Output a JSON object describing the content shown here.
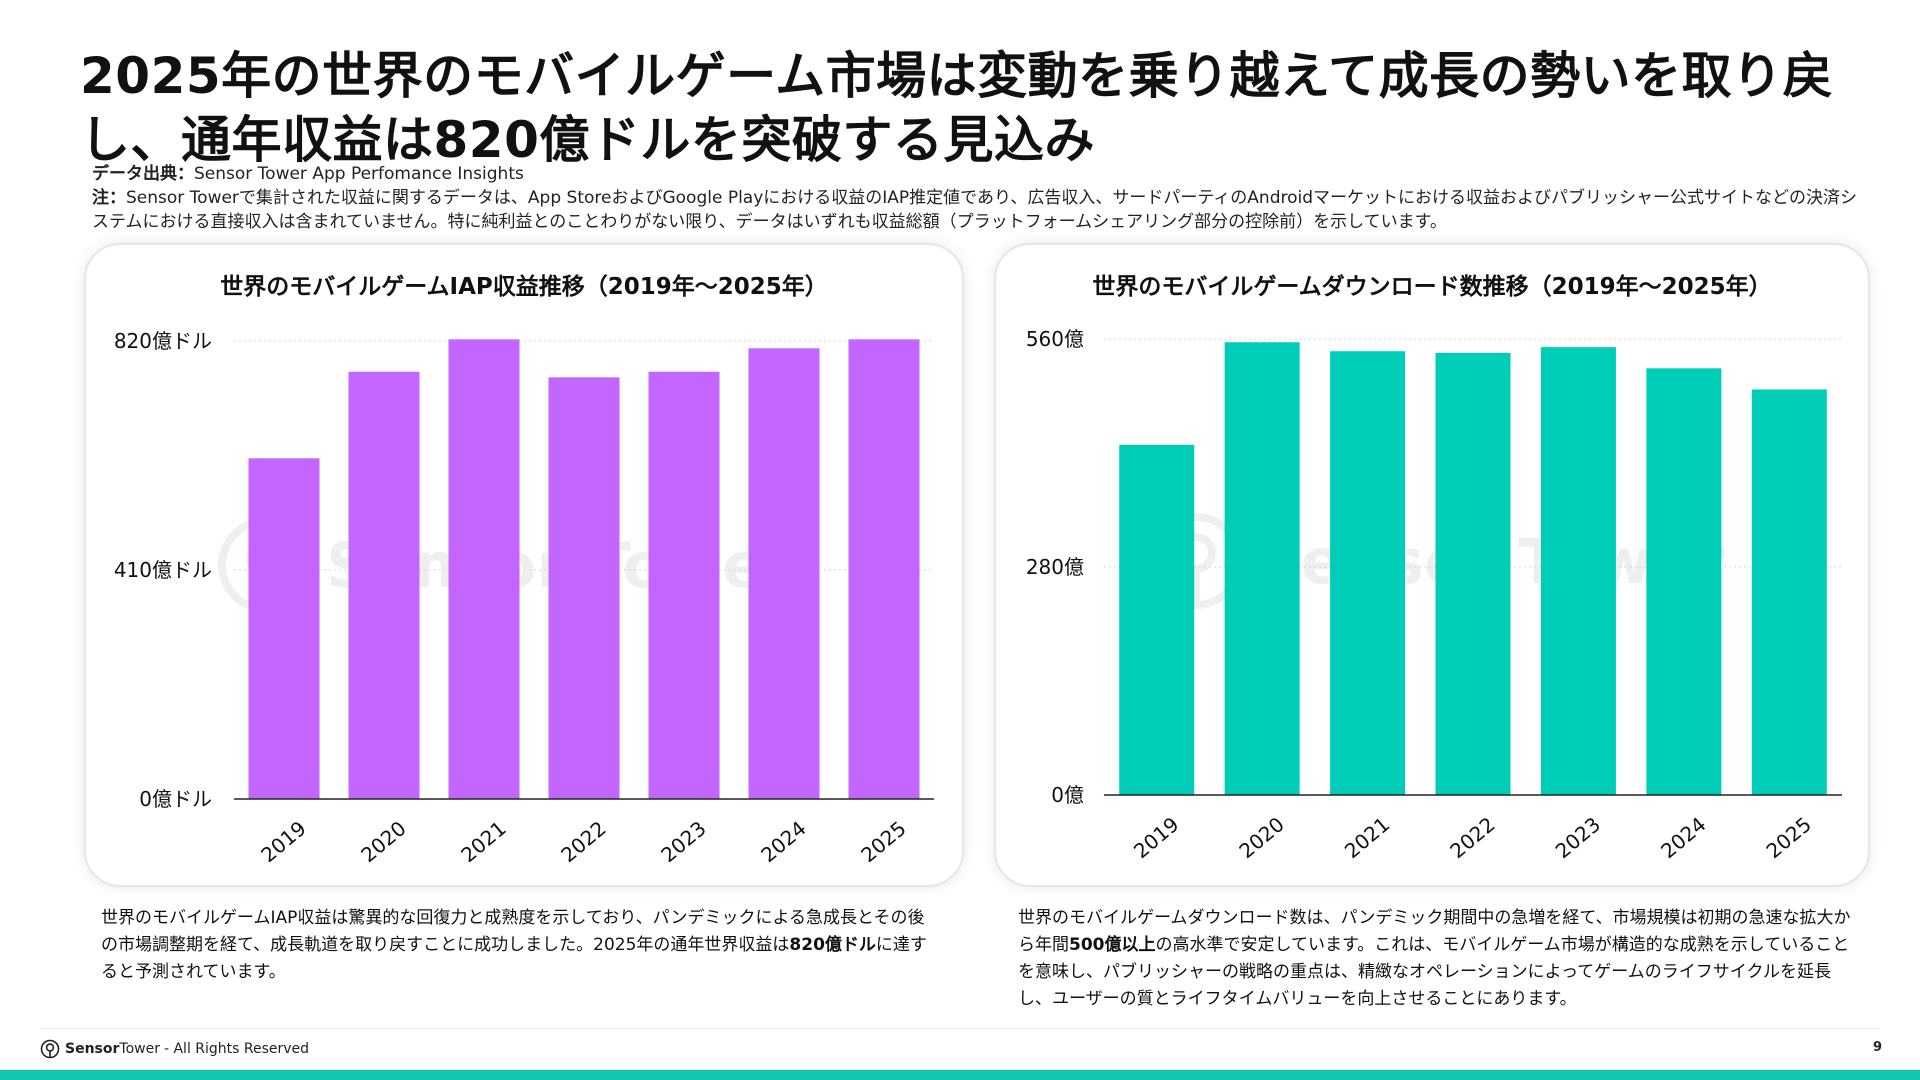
{
  "title": "2025年の世界のモバイルゲーム市場は変動を乗り越えて成長の勢いを取り戻し、通年収益は820億ドルを突破する見込み",
  "source": {
    "label": "データ出典：",
    "text": "Sensor Tower App Perfomance Insights"
  },
  "note": {
    "label": "注：",
    "text": "Sensor Towerで集計された収益に関するデータは、App StoreおよびGoogle Playにおける収益のIAP推定値であり、広告収入、サードパーティのAndroidマーケットにおける収益およびパブリッシャー公式サイトなどの決済システムにおける直接収入は含まれていません。特に純利益とのことわりがない限り、データはいずれも収益総額（プラットフォームシェアリング部分の控除前）を示しています。"
  },
  "watermark": {
    "text": "Sensor Tower"
  },
  "charts": {
    "left": {
      "title": "世界のモバイルゲームIAP収益推移（2019年～2025年）"
    },
    "right": {
      "title": "世界のモバイルゲームダウンロード数推移（2019年～2025年）"
    }
  },
  "chart_data": [
    {
      "type": "bar",
      "title": "世界のモバイルゲームIAP収益推移（2019年～2025年）",
      "categories": [
        "2019",
        "2020",
        "2021",
        "2022",
        "2023",
        "2024",
        "2025"
      ],
      "values": [
        610,
        765,
        823,
        755,
        765,
        807,
        823
      ],
      "unit": "億ドル",
      "ylim": [
        0,
        820
      ],
      "yticks": [
        0,
        410,
        820
      ],
      "ytick_labels": [
        "0億ドル",
        "410億ドル",
        "820億ドル"
      ],
      "grid": true,
      "color": "#c266ff"
    },
    {
      "type": "bar",
      "title": "世界のモバイルゲームダウンロード数推移（2019年～2025年）",
      "categories": [
        "2019",
        "2020",
        "2021",
        "2022",
        "2023",
        "2024",
        "2025"
      ],
      "values": [
        430,
        556,
        545,
        543,
        550,
        524,
        498
      ],
      "unit": "億",
      "ylim": [
        0,
        560
      ],
      "yticks": [
        0,
        280,
        560
      ],
      "ytick_labels": [
        "0億",
        "280億",
        "560億"
      ],
      "grid": true,
      "color": "#00cdb7"
    }
  ],
  "descriptions": {
    "left": {
      "before": "世界のモバイルゲームIAP収益は驚異的な回復力と成熟度を示しており、パンデミックによる急成長とその後の市場調整期を経て、成長軌道を取り戻すことに成功しました。2025年の通年世界収益は",
      "strong": "820億ドル",
      "after": "に達すると予測されています。"
    },
    "right": {
      "before": "世界のモバイルゲームダウンロード数は、パンデミック期間中の急増を経て、市場規模は初期の急速な拡大から年間",
      "strong": "500億以上",
      "after": "の高水準で安定しています。これは、モバイルゲーム市場が構造的な成熟を示していることを意味し、パブリッシャーの戦略の重点は、精緻なオペレーションによってゲームのライフサイクルを延長し、ユーザーの質とライフタイムバリューを向上させることにあります。"
    }
  },
  "footer": {
    "brand_bold": "Sensor",
    "brand_regular": "Tower",
    "rights": "- All Rights Reserved",
    "page": "9"
  },
  "colors": {
    "accent": "#12c7b1",
    "iap_bar": "#c266ff",
    "download_bar": "#00cdb7"
  }
}
